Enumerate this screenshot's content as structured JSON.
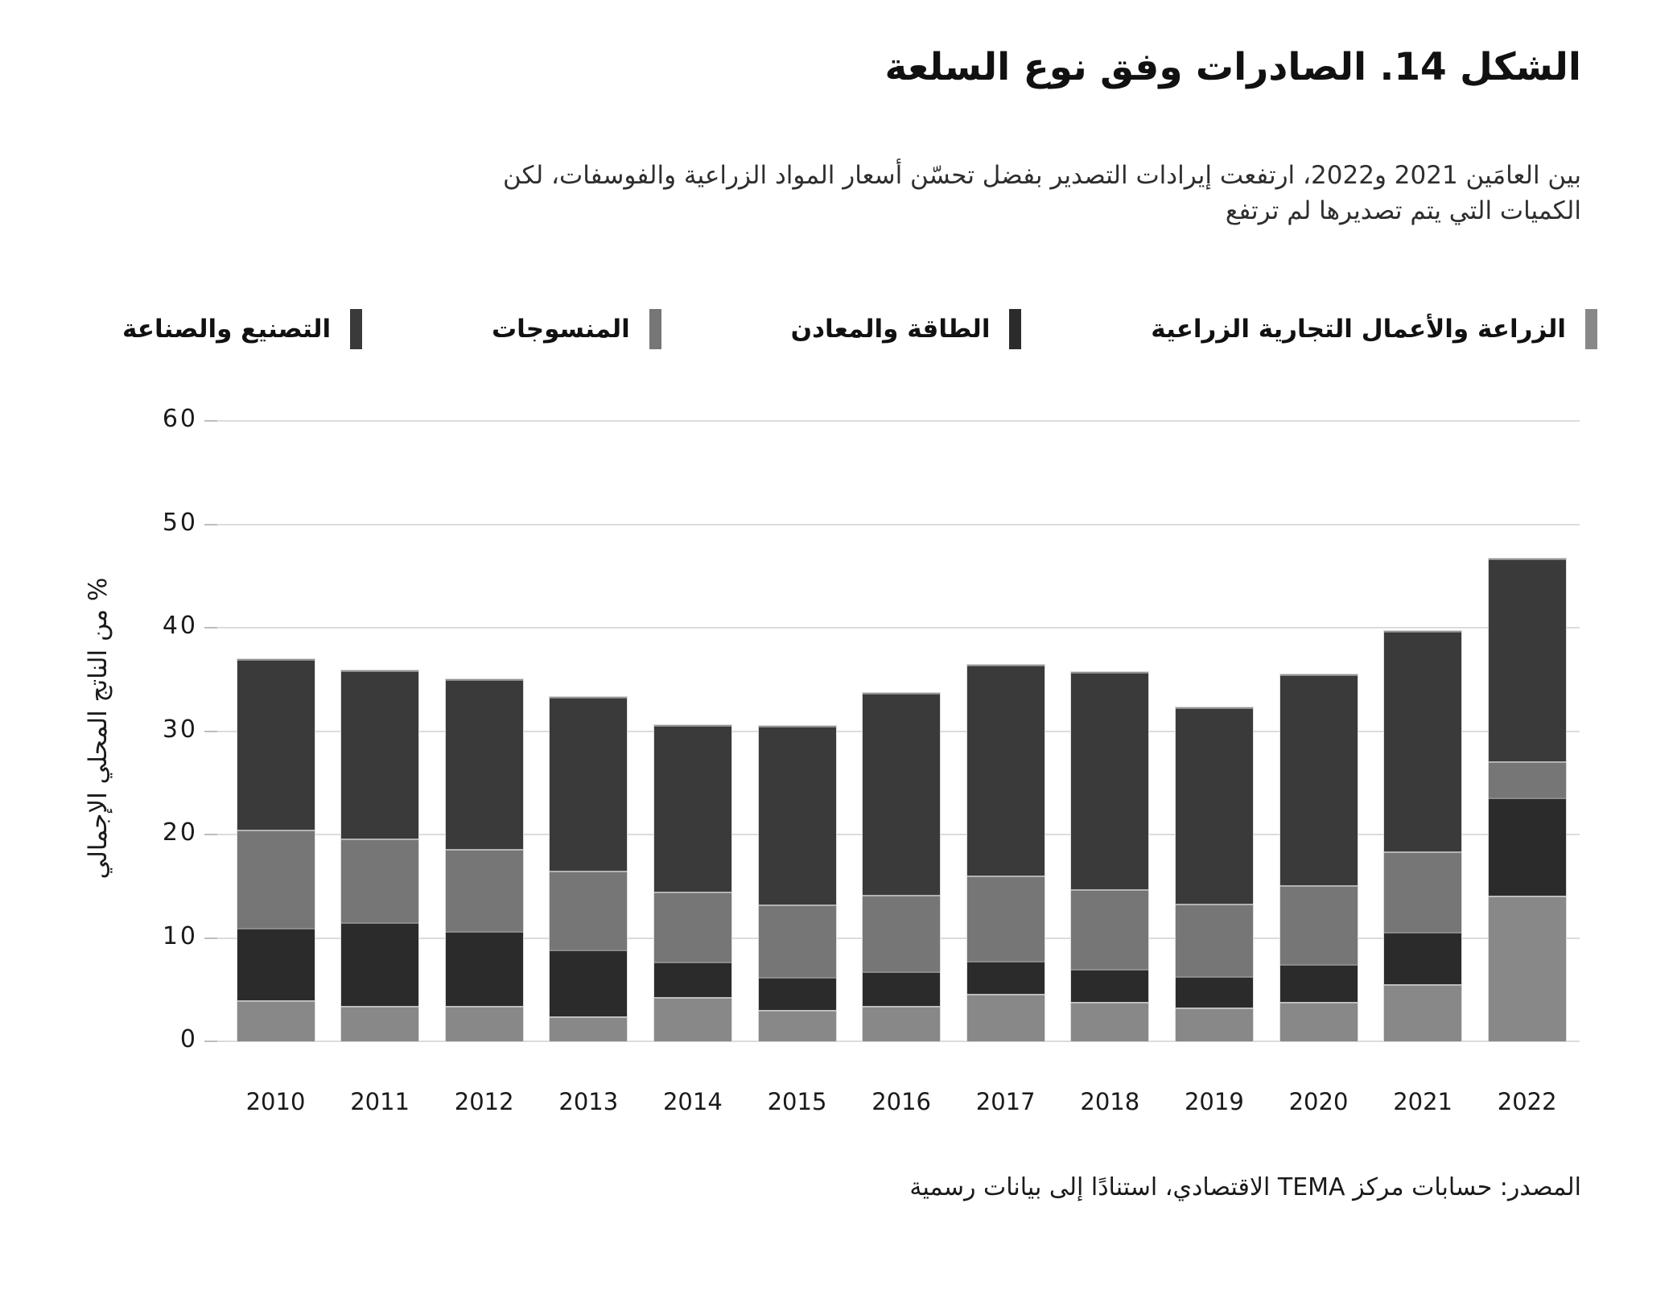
{
  "header": {
    "title": "الشكل 14. الصادرات وفق نوع السلعة",
    "subtitle_lines": [
      "بين العامَين 2021 و2022، ارتفعت إيرادات التصدير بفضل تحسّن أسعار المواد الزراعية والفوسفات، لكن",
      "الكميات التي يتم تصديرها لم ترتفع"
    ]
  },
  "chart_data": {
    "type": "bar",
    "stacked": true,
    "orientation": "vertical",
    "categories": [
      "2010",
      "2011",
      "2012",
      "2013",
      "2014",
      "2015",
      "2016",
      "2017",
      "2018",
      "2019",
      "2020",
      "2021",
      "2022"
    ],
    "series": [
      {
        "key": "agriculture-agribusiness",
        "label": "الزراعة والأعمال التجارية الزراعية",
        "color": "#888888",
        "values": [
          4.0,
          3.4,
          3.4,
          2.4,
          4.3,
          3.0,
          3.4,
          4.6,
          3.8,
          3.3,
          3.8,
          5.5,
          14.1
        ]
      },
      {
        "key": "energy-minerals",
        "label": "الطاقة والمعادن",
        "color": "#2b2b2b",
        "values": [
          7.0,
          8.1,
          7.3,
          6.5,
          3.4,
          3.2,
          3.4,
          3.2,
          3.2,
          3.0,
          3.7,
          5.1,
          9.5
        ]
      },
      {
        "key": "textiles",
        "label": "المنسوجات",
        "color": "#767676",
        "values": [
          9.5,
          8.1,
          7.9,
          7.6,
          6.8,
          7.0,
          7.4,
          8.2,
          7.7,
          7.0,
          7.6,
          7.8,
          3.5
        ]
      },
      {
        "key": "manufacturing-industry",
        "label": "التصنيع والصناعة",
        "color": "#3a3a3a",
        "values": [
          16.5,
          16.3,
          16.4,
          16.8,
          16.1,
          17.3,
          19.5,
          20.4,
          21.0,
          19.0,
          20.4,
          21.3,
          19.6
        ]
      }
    ],
    "totals": [
      37.0,
      35.9,
      35.0,
      33.3,
      30.6,
      30.5,
      33.7,
      36.4,
      35.7,
      32.3,
      35.5,
      39.7,
      46.7
    ],
    "ylabel": "% من الناتج المحلي الإجمالي",
    "ylim": [
      0,
      60
    ],
    "yticks": [
      0,
      10,
      20,
      30,
      40,
      50,
      60
    ],
    "grid": true,
    "legend_position": "top"
  },
  "source": "المصدر: حسابات مركز TEMA الاقتصادي، استنادًا إلى بيانات رسمية"
}
